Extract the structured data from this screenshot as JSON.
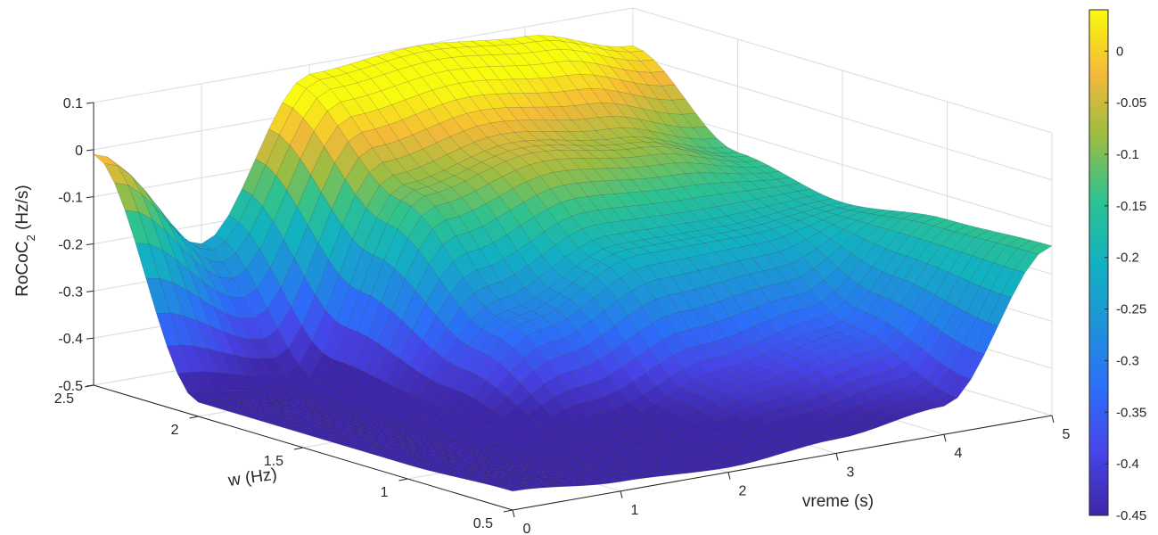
{
  "chart_data": {
    "type": "surface",
    "xlabel": "vreme (s)",
    "ylabel": "w (Hz)",
    "zlabel": "RoCoC",
    "zlabel_sub": "2",
    "zlabel_unit": " (Hz/s)",
    "xlim": [
      0,
      5
    ],
    "ylim": [
      0.5,
      2.5
    ],
    "zlim": [
      -0.5,
      0.1
    ],
    "x_ticks": [
      "0",
      "1",
      "2",
      "3",
      "4",
      "5"
    ],
    "y_ticks": [
      "0.5",
      "1",
      "1.5",
      "2",
      "2.5"
    ],
    "z_ticks": [
      "-0.5",
      "-0.4",
      "-0.3",
      "-0.2",
      "-0.1",
      "0",
      "0.1"
    ],
    "grid": true,
    "colormap": "parula",
    "colorbar": {
      "range": [
        -0.45,
        0.04
      ],
      "ticks": [
        "0",
        "-0.05",
        "-0.1",
        "-0.15",
        "-0.2",
        "-0.25",
        "-0.3",
        "-0.35",
        "-0.4",
        "-0.45"
      ],
      "position": "right"
    },
    "surface_profile": {
      "w_values": [
        0.5,
        1.0,
        1.5,
        2.0,
        2.5
      ],
      "note_values_z_at_vreme": [
        {
          "vreme": 0,
          "z": [
            -0.46,
            -0.47,
            -0.47,
            -0.47,
            -0.01
          ]
        },
        {
          "vreme": 1,
          "z": [
            -0.48,
            -0.49,
            -0.49,
            -0.49,
            -0.24
          ]
        },
        {
          "vreme": 2,
          "z": [
            -0.49,
            -0.47,
            -0.3,
            -0.1,
            0.08
          ]
        },
        {
          "vreme": 3,
          "z": [
            -0.47,
            -0.4,
            -0.2,
            -0.05,
            0.1
          ]
        },
        {
          "vreme": 4,
          "z": [
            -0.44,
            -0.35,
            -0.2,
            -0.08,
            0.08
          ]
        },
        {
          "vreme": 5,
          "z": [
            -0.14,
            -0.15,
            -0.18,
            -0.14,
            0.02
          ]
        }
      ]
    }
  }
}
